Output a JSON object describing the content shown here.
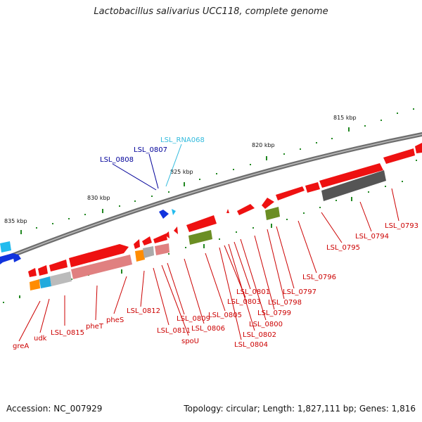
{
  "title": "Lactobacillus salivarius UCC118, complete genome",
  "footer": {
    "accession": "Accession: NC_007929",
    "summary": "Topology: circular; Length: 1,827,111 bp; Genes: 1,816"
  },
  "colors": {
    "cds": "#ee1111",
    "rna": "#1133dd",
    "rna_light": "#22bbee",
    "label_red": "#cc0000",
    "label_navy": "#000099",
    "label_cyan": "#33bbdd",
    "backbone": "#808080",
    "tick": "#228822",
    "cog_olive": "#6b8e23",
    "cog_grey": "#555555",
    "cog_lightgrey": "#aaaaaa",
    "cog_orange": "#ff8c00",
    "cog_cyan": "#22aadd",
    "cog_pink": "#e08080"
  },
  "scale_labels": [
    "815 kbp",
    "820 kbp",
    "825 kbp",
    "830 kbp",
    "835 kbp"
  ],
  "gene_labels": {
    "rna": [
      "LSL_0808",
      "LSL_0807",
      "LSL_RNA068"
    ],
    "cds": [
      "greA",
      "udk",
      "LSL_0815",
      "pheT",
      "pheS",
      "LSL_0812",
      "LSL_0811",
      "spoU",
      "LSL_0809",
      "LSL_0806",
      "LSL_0805",
      "LSL_0804",
      "LSL_0803",
      "LSL_0802",
      "LSL_0801",
      "LSL_0800",
      "LSL_0799",
      "LSL_0798",
      "LSL_0797",
      "LSL_0796",
      "LSL_0795",
      "LSL_0794",
      "LSL_0793"
    ]
  }
}
